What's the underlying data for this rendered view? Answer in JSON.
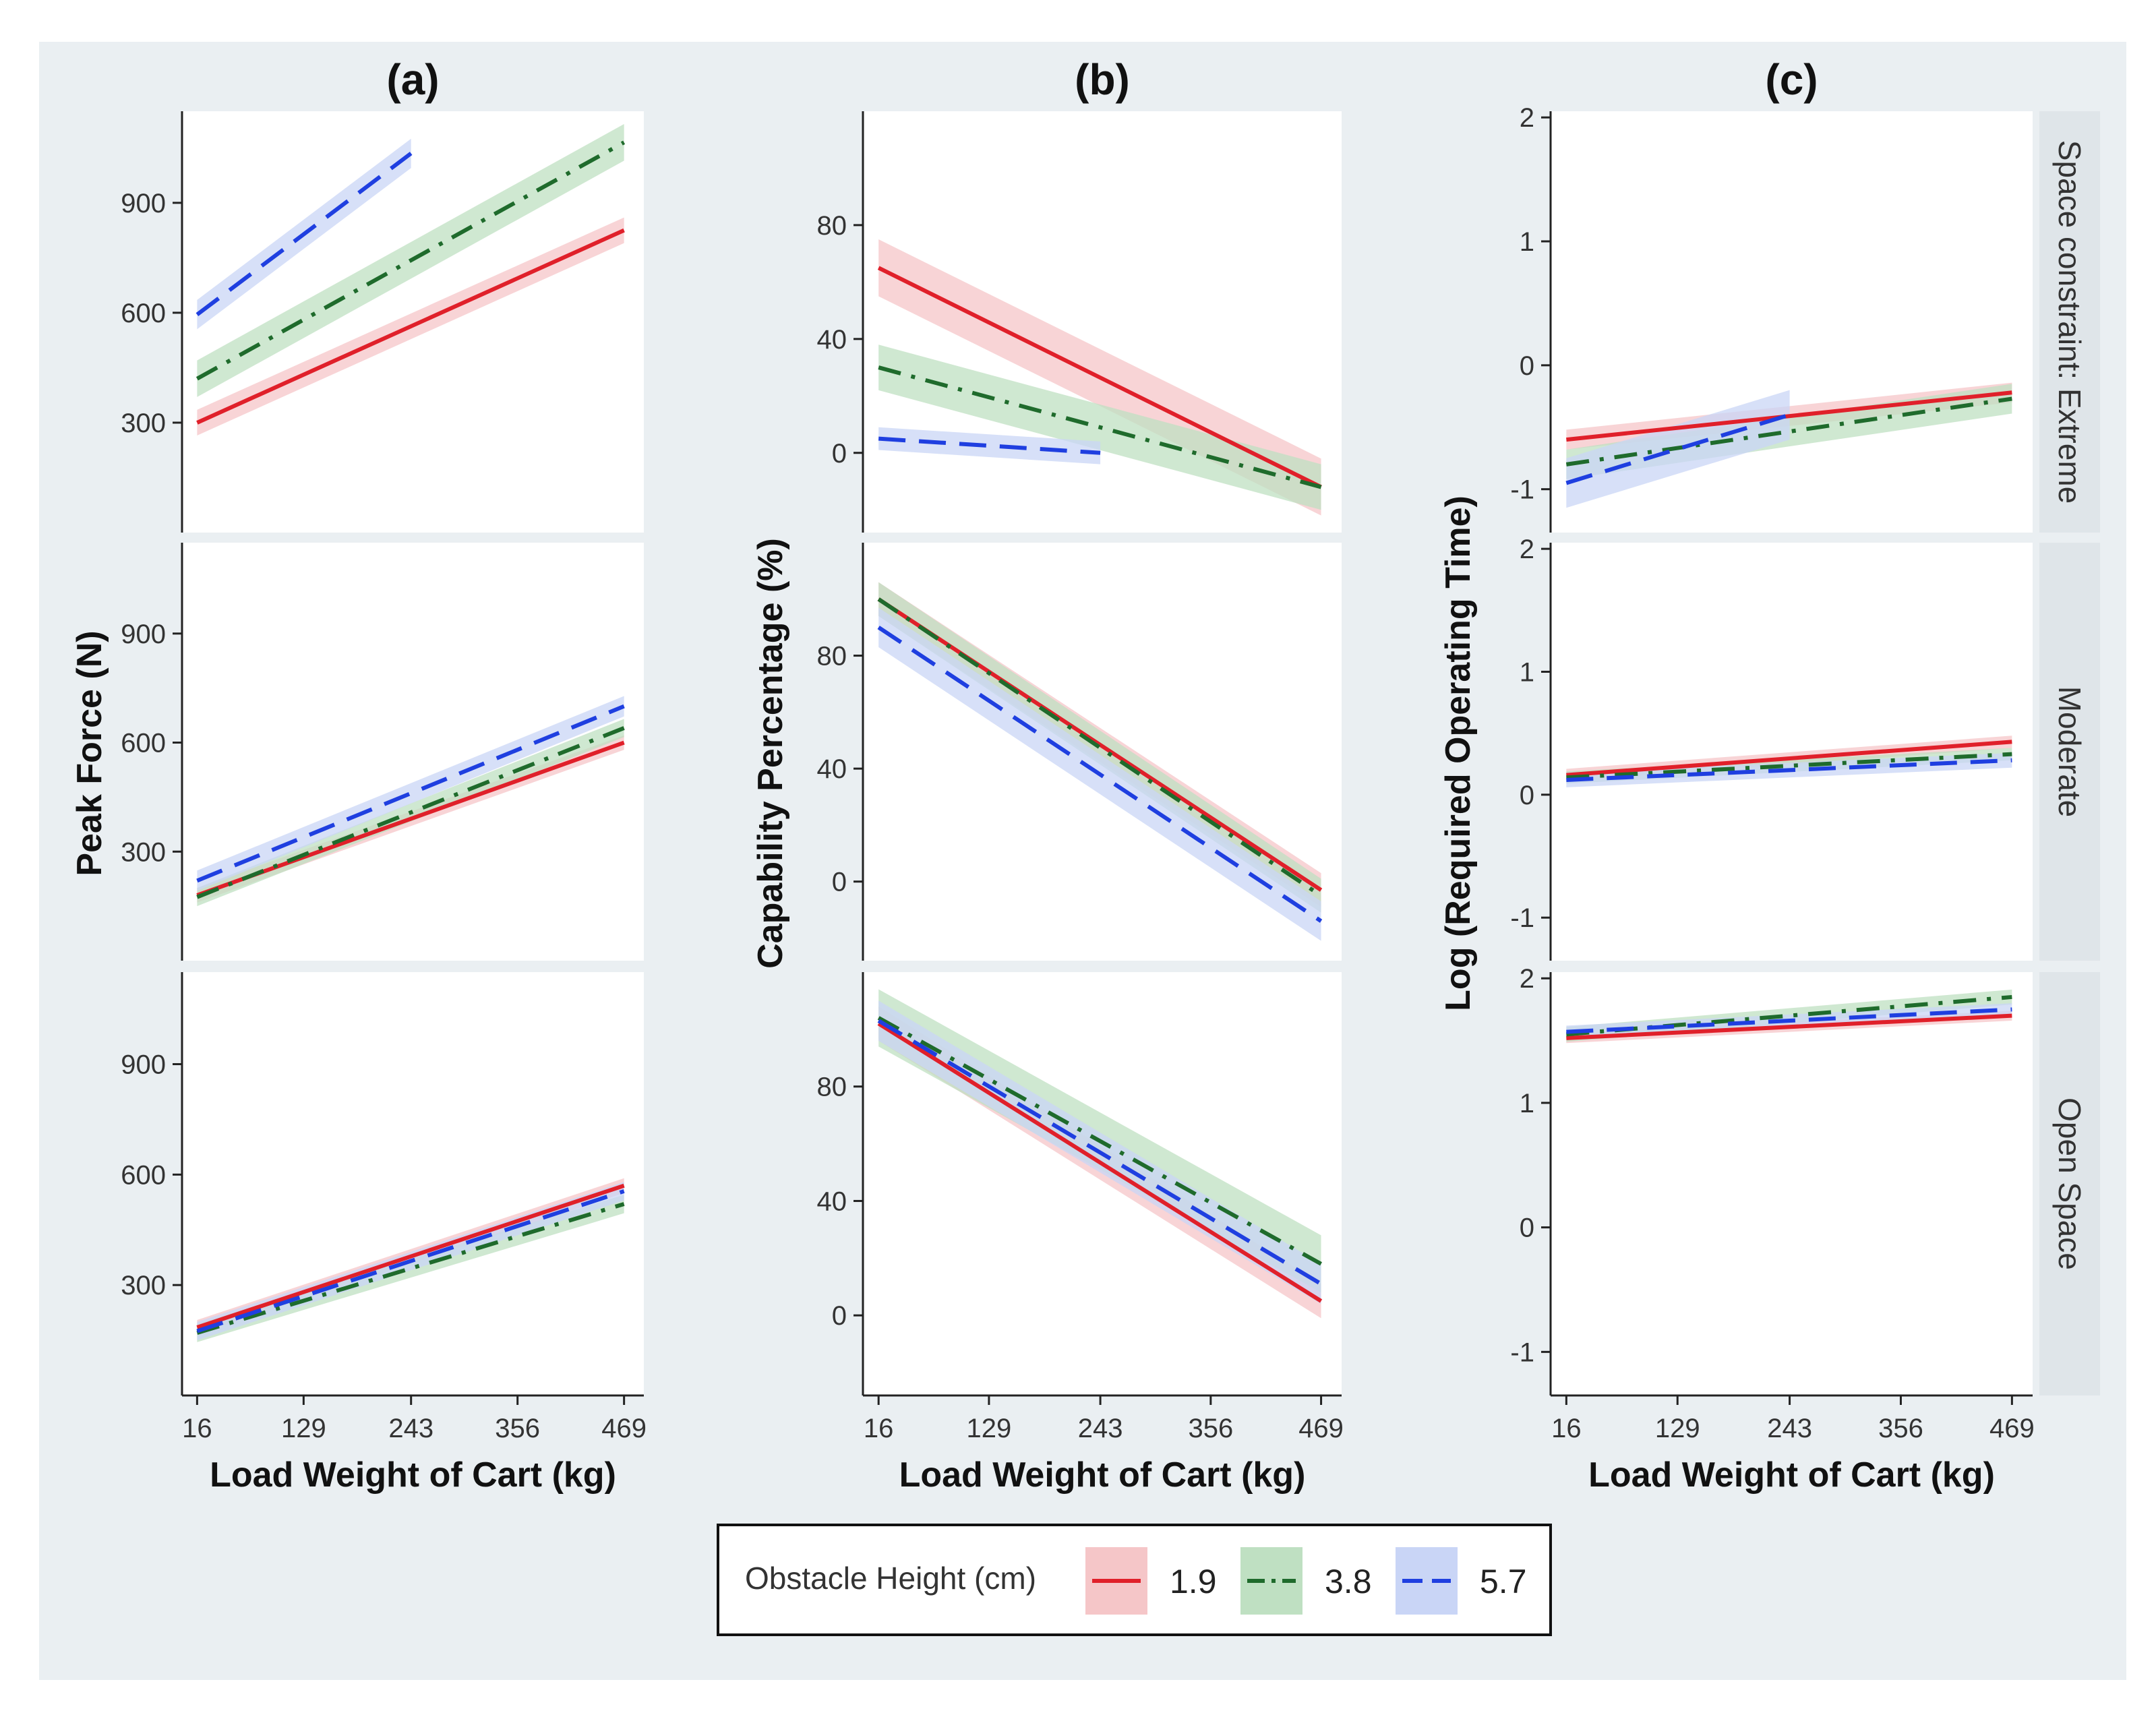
{
  "colors": {
    "figure_bg": "#eaeff2",
    "panel_bg": "#ffffff",
    "strip_bg": "#dfe5e9",
    "axis": "#222222",
    "series": {
      "1.9": "#e0202a",
      "3.8": "#1f6b2c",
      "5.7": "#1f3fe0"
    },
    "bands": {
      "1.9": "#f5c6c8",
      "3.8": "#bfe0c2",
      "5.7": "#c9d5f6"
    }
  },
  "legend": {
    "title": "Obstacle Height (cm)",
    "items": [
      {
        "key": "1.9",
        "label": "1.9",
        "dash": "solid"
      },
      {
        "key": "3.8",
        "label": "3.8",
        "dash": "dashdot"
      },
      {
        "key": "5.7",
        "label": "5.7",
        "dash": "dash"
      }
    ]
  },
  "chart_data": {
    "type": "line",
    "x_ticks": [
      "16",
      "129",
      "243",
      "356",
      "469"
    ],
    "xlim": [
      0,
      490
    ],
    "xlabel": "Load Weight of Cart (kg)",
    "rows": [
      "Space constraint: Extreme",
      "Moderate",
      "Open Space"
    ],
    "columns": [
      {
        "title": "(a)",
        "ylabel": "Peak Force (N)",
        "ylim": [
          0,
          1150
        ],
        "yticks": [
          "300",
          "600",
          "900"
        ],
        "panels": [
          {
            "row": "Space constraint: Extreme",
            "series": [
              {
                "name": "1.9",
                "x": [
                  16,
                  469
                ],
                "y": [
                  300,
                  825
                ],
                "ci": 35
              },
              {
                "name": "3.8",
                "x": [
                  16,
                  469
                ],
                "y": [
                  420,
                  1065
                ],
                "ci": 50
              },
              {
                "name": "5.7",
                "x": [
                  16,
                  243
                ],
                "y": [
                  595,
                  1035
                ],
                "ci": 40
              }
            ]
          },
          {
            "row": "Moderate",
            "series": [
              {
                "name": "1.9",
                "x": [
                  16,
                  469
                ],
                "y": [
                  180,
                  600
                ],
                "ci": 20
              },
              {
                "name": "3.8",
                "x": [
                  16,
                  469
                ],
                "y": [
                  175,
                  640
                ],
                "ci": 25
              },
              {
                "name": "5.7",
                "x": [
                  16,
                  469
                ],
                "y": [
                  220,
                  700
                ],
                "ci": 28
              }
            ]
          },
          {
            "row": "Open Space",
            "series": [
              {
                "name": "1.9",
                "x": [
                  16,
                  469
                ],
                "y": [
                  185,
                  570
                ],
                "ci": 20
              },
              {
                "name": "3.8",
                "x": [
                  16,
                  469
                ],
                "y": [
                  170,
                  520
                ],
                "ci": 25
              },
              {
                "name": "5.7",
                "x": [
                  16,
                  469
                ],
                "y": [
                  175,
                  555
                ],
                "ci": 25
              }
            ]
          }
        ]
      },
      {
        "title": "(b)",
        "ylabel": "Capability Percentage (%)",
        "ylim": [
          -28,
          120
        ],
        "yticks": [
          "0",
          "40",
          "80"
        ],
        "panels": [
          {
            "row": "Space constraint: Extreme",
            "series": [
              {
                "name": "1.9",
                "x": [
                  16,
                  469
                ],
                "y": [
                  65,
                  -12
                ],
                "ci": 10
              },
              {
                "name": "3.8",
                "x": [
                  16,
                  469
                ],
                "y": [
                  30,
                  -12
                ],
                "ci": 8
              },
              {
                "name": "5.7",
                "x": [
                  16,
                  243
                ],
                "y": [
                  5,
                  0
                ],
                "ci": 4
              }
            ]
          },
          {
            "row": "Moderate",
            "series": [
              {
                "name": "1.9",
                "x": [
                  16,
                  469
                ],
                "y": [
                  100,
                  -3
                ],
                "ci": 6
              },
              {
                "name": "3.8",
                "x": [
                  16,
                  469
                ],
                "y": [
                  100,
                  -5
                ],
                "ci": 6
              },
              {
                "name": "5.7",
                "x": [
                  16,
                  469
                ],
                "y": [
                  90,
                  -14
                ],
                "ci": 7
              }
            ]
          },
          {
            "row": "Open Space",
            "series": [
              {
                "name": "1.9",
                "x": [
                  16,
                  469
                ],
                "y": [
                  102,
                  5
                ],
                "ci": 6
              },
              {
                "name": "3.8",
                "x": [
                  16,
                  469
                ],
                "y": [
                  104,
                  18
                ],
                "ci": 10
              },
              {
                "name": "5.7",
                "x": [
                  16,
                  469
                ],
                "y": [
                  103,
                  11
                ],
                "ci": 7
              }
            ]
          }
        ]
      },
      {
        "title": "(c)",
        "ylabel": "Log (Required Operating Time)",
        "ylim": [
          -1.35,
          2.05
        ],
        "yticks": [
          "-1",
          "0",
          "1",
          "2"
        ],
        "panels": [
          {
            "row": "Space constraint: Extreme",
            "series": [
              {
                "name": "1.9",
                "x": [
                  16,
                  469
                ],
                "y": [
                  -0.6,
                  -0.22
                ],
                "ci": 0.08
              },
              {
                "name": "3.8",
                "x": [
                  16,
                  469
                ],
                "y": [
                  -0.8,
                  -0.27
                ],
                "ci": 0.12
              },
              {
                "name": "5.7",
                "x": [
                  16,
                  243
                ],
                "y": [
                  -0.95,
                  -0.4
                ],
                "ci": 0.2
              }
            ]
          },
          {
            "row": "Moderate",
            "series": [
              {
                "name": "1.9",
                "x": [
                  16,
                  469
                ],
                "y": [
                  0.16,
                  0.43
                ],
                "ci": 0.05
              },
              {
                "name": "3.8",
                "x": [
                  16,
                  469
                ],
                "y": [
                  0.14,
                  0.33
                ],
                "ci": 0.05
              },
              {
                "name": "5.7",
                "x": [
                  16,
                  469
                ],
                "y": [
                  0.12,
                  0.28
                ],
                "ci": 0.06
              }
            ]
          },
          {
            "row": "Open Space",
            "series": [
              {
                "name": "1.9",
                "x": [
                  16,
                  469
                ],
                "y": [
                  1.52,
                  1.7
                ],
                "ci": 0.04
              },
              {
                "name": "3.8",
                "x": [
                  16,
                  469
                ],
                "y": [
                  1.55,
                  1.85
                ],
                "ci": 0.06
              },
              {
                "name": "5.7",
                "x": [
                  16,
                  469
                ],
                "y": [
                  1.57,
                  1.75
                ],
                "ci": 0.05
              }
            ]
          }
        ]
      }
    ]
  }
}
